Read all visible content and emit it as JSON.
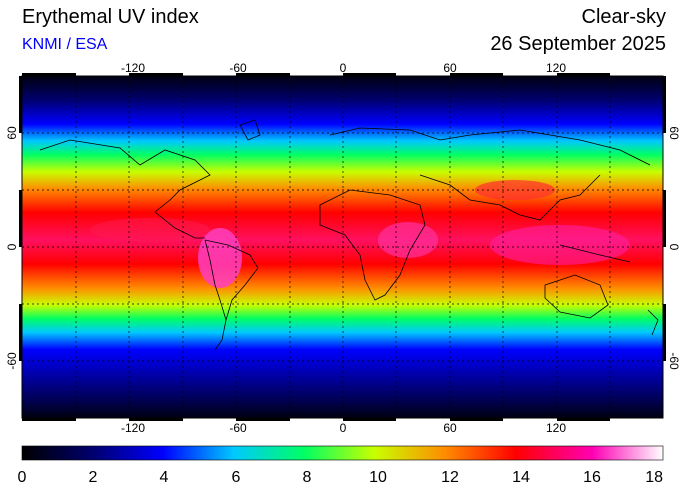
{
  "header": {
    "title": "Erythemal UV index",
    "source": "KNMI / ESA",
    "condition": "Clear-sky",
    "date": "26 September 2025"
  },
  "map": {
    "lon_range": [
      -180,
      180
    ],
    "lat_range": [
      -90,
      90
    ],
    "lon_ticks": [
      "-120",
      "-60",
      "0",
      "60",
      "120"
    ],
    "lat_ticks": [
      "60",
      "0",
      "-60"
    ],
    "gridlines": "dashed every 30 degrees"
  },
  "colorbar": {
    "labels": [
      "0",
      "2",
      "4",
      "6",
      "8",
      "10",
      "12",
      "14",
      "16",
      "18"
    ],
    "range": [
      0,
      18
    ],
    "stops": [
      "#000000",
      "#00006e",
      "#0000ff",
      "#00c8ff",
      "#00ff64",
      "#c8ff00",
      "#ff8c00",
      "#ff0000",
      "#ff00b4",
      "#ffffff"
    ]
  }
}
